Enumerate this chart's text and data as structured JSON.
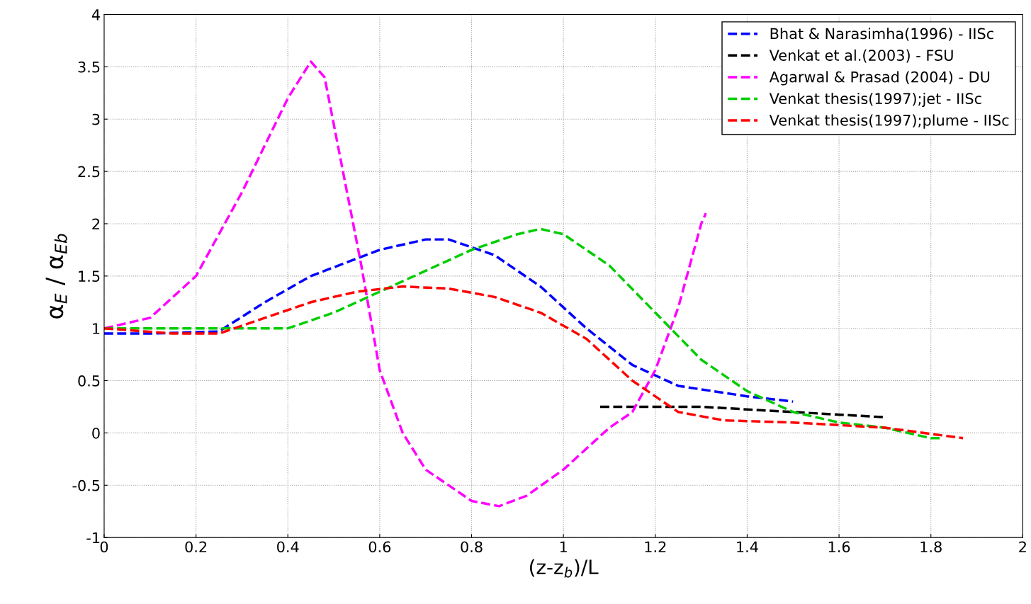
{
  "chart_data": {
    "type": "line",
    "xlabel": "(z-z$_{b}$)/L",
    "ylabel": "α$_{E}$ / α$_{Eb}$",
    "xlim": [
      0,
      2
    ],
    "xticks": [
      0,
      0.2,
      0.4,
      0.6,
      0.8,
      1,
      1.2,
      1.4,
      1.6,
      1.8,
      2
    ],
    "ylim": [
      -1,
      4
    ],
    "yticks": [
      -1,
      -0.5,
      0,
      0.5,
      1,
      1.5,
      2,
      2.5,
      3,
      3.5,
      4
    ],
    "grid": true,
    "legend": "top right",
    "line_style": "dashed",
    "series": [
      {
        "name": "Bhat & Narasimha(1996) - IISc",
        "color": "#0000ff",
        "x": [
          0,
          0.1,
          0.25,
          0.35,
          0.45,
          0.6,
          0.7,
          0.75,
          0.85,
          0.95,
          1.05,
          1.15,
          1.25,
          1.4,
          1.5
        ],
        "values": [
          0.95,
          0.95,
          0.97,
          1.25,
          1.5,
          1.75,
          1.85,
          1.85,
          1.7,
          1.4,
          1.0,
          0.65,
          0.45,
          0.35,
          0.3
        ]
      },
      {
        "name": "Venkat et al.(2003) - FSU",
        "color": "#000000",
        "x": [
          1.08,
          1.3,
          1.5,
          1.7
        ],
        "values": [
          0.25,
          0.25,
          0.2,
          0.15
        ]
      },
      {
        "name": "Agarwal & Prasad (2004) - DU",
        "color": "#ff00ff",
        "x": [
          0,
          0.1,
          0.2,
          0.3,
          0.4,
          0.45,
          0.48,
          0.52,
          0.56,
          0.6,
          0.65,
          0.7,
          0.8,
          0.86,
          0.92,
          1.0,
          1.1,
          1.15,
          1.2,
          1.25,
          1.3,
          1.31
        ],
        "values": [
          1.0,
          1.1,
          1.5,
          2.3,
          3.2,
          3.55,
          3.4,
          2.5,
          1.6,
          0.6,
          0.0,
          -0.35,
          -0.65,
          -0.7,
          -0.6,
          -0.35,
          0.05,
          0.2,
          0.6,
          1.2,
          2.0,
          2.1
        ]
      },
      {
        "name": "Venkat thesis(1997);jet - IISc",
        "color": "#00cc00",
        "x": [
          0,
          0.2,
          0.4,
          0.5,
          0.6,
          0.7,
          0.8,
          0.9,
          0.95,
          1.0,
          1.1,
          1.2,
          1.3,
          1.4,
          1.5,
          1.6,
          1.7,
          1.8,
          1.82
        ],
        "values": [
          1.0,
          1.0,
          1.0,
          1.15,
          1.35,
          1.55,
          1.75,
          1.9,
          1.95,
          1.9,
          1.6,
          1.15,
          0.7,
          0.4,
          0.2,
          0.1,
          0.05,
          -0.05,
          -0.05
        ]
      },
      {
        "name": "Venkat thesis(1997);plume - IISc",
        "color": "#ff0000",
        "x": [
          0,
          0.15,
          0.25,
          0.35,
          0.45,
          0.55,
          0.65,
          0.75,
          0.85,
          0.95,
          1.05,
          1.15,
          1.25,
          1.35,
          1.5,
          1.7,
          1.87
        ],
        "values": [
          1.0,
          0.95,
          0.95,
          1.1,
          1.25,
          1.35,
          1.4,
          1.38,
          1.3,
          1.15,
          0.9,
          0.5,
          0.2,
          0.12,
          0.1,
          0.05,
          -0.05
        ]
      }
    ]
  }
}
